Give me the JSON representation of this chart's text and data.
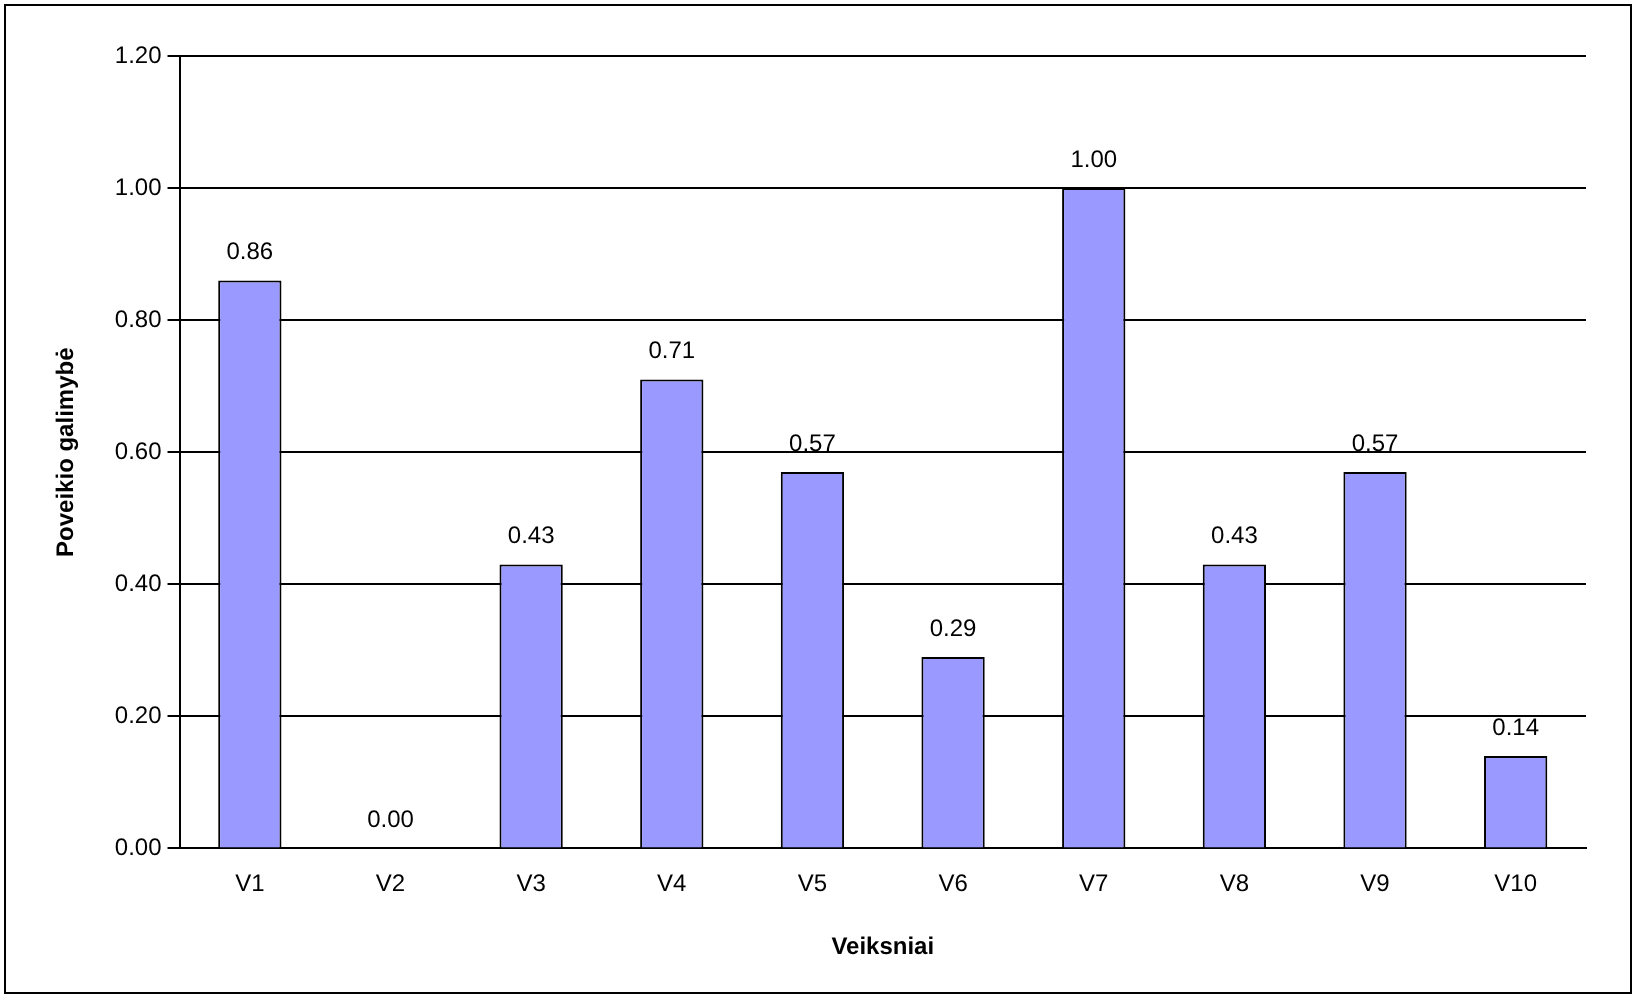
{
  "chart_data": {
    "type": "bar",
    "xlabel": "Veiksniai",
    "ylabel": "Poveikio galimybė",
    "categories": [
      "V1",
      "V2",
      "V3",
      "V4",
      "V5",
      "V6",
      "V7",
      "V8",
      "V9",
      "V10"
    ],
    "values": [
      0.86,
      0,
      0.43,
      0.71,
      0.57,
      0.29,
      1,
      0.43,
      0.57,
      0.14
    ],
    "value_labels": [
      "0.86",
      "0.00",
      "0.43",
      "0.71",
      "0.57",
      "0.29",
      "1.00",
      "0.43",
      "0.57",
      "0.14"
    ],
    "color": "#9999ff",
    "ylim": [
      0,
      1.2
    ],
    "yticks": [
      {
        "value": 0,
        "label": "0.00"
      },
      {
        "value": 0.2,
        "label": "0.20"
      },
      {
        "value": 0.4,
        "label": "0.40"
      },
      {
        "value": 0.6,
        "label": "0.60"
      },
      {
        "value": 0.8,
        "label": "0.80"
      },
      {
        "value": 1,
        "label": "1.00"
      },
      {
        "value": 1.2,
        "label": "1.20"
      }
    ],
    "grid": "y",
    "legend": false
  }
}
